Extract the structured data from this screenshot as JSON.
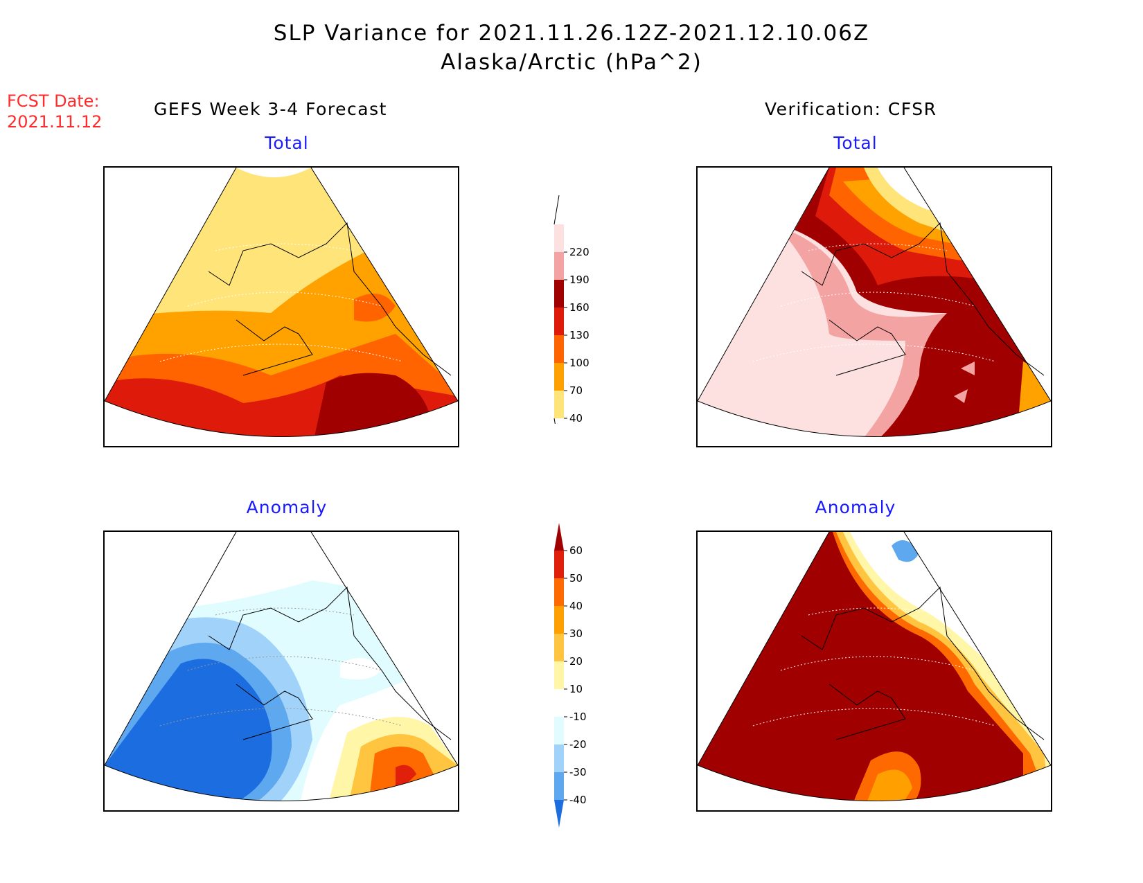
{
  "header": {
    "title_line1": "SLP Variance for 2021.11.26.12Z-2021.12.10.06Z",
    "title_line2": "Alaska/Arctic (hPa^2)"
  },
  "fcst": {
    "label": "FCST Date:",
    "date": "2021.11.12"
  },
  "columns": {
    "left": "GEFS Week 3-4 Forecast",
    "right": "Verification: CFSR"
  },
  "panels": {
    "top_left": "Total",
    "top_right": "Total",
    "bottom_left": "Anomaly",
    "bottom_right": "Anomaly"
  },
  "colorbar_total": {
    "levels": [
      "220",
      "190",
      "160",
      "130",
      "100",
      "70",
      "40"
    ],
    "colors": [
      "#fde0e0",
      "#f4a3a3",
      "#a00000",
      "#de1a0a",
      "#ff6400",
      "#ffa200",
      "#ffe47a"
    ]
  },
  "colorbar_anomaly": {
    "levels": [
      "60",
      "50",
      "40",
      "30",
      "20",
      "10",
      "-10",
      "-20",
      "-30",
      "-40"
    ],
    "colors": [
      "#a00000",
      "#e0200a",
      "#ff6a00",
      "#ffa000",
      "#ffc440",
      "#fff6a8",
      "#ffffff",
      "#e0fcff",
      "#a0d2fa",
      "#5ea8f0",
      "#1c6ee0"
    ]
  }
}
